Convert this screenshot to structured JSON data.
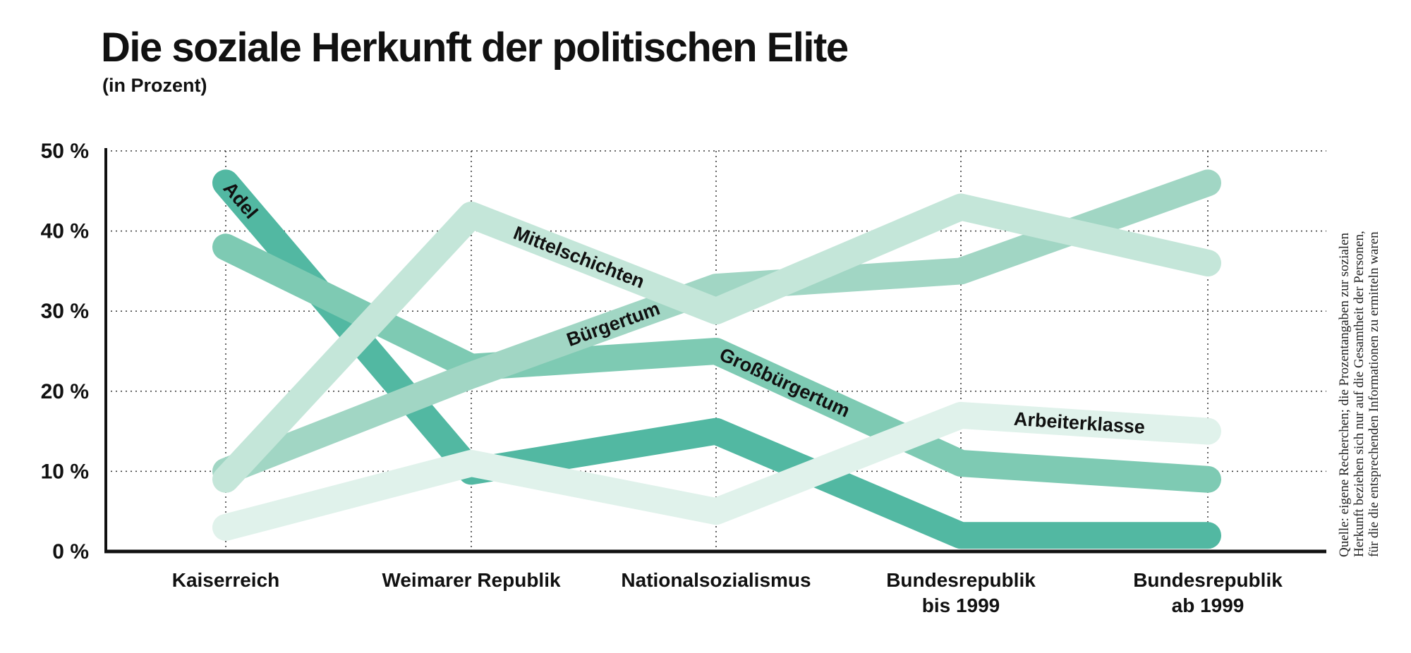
{
  "header": {
    "title": "Die soziale Herkunft der politischen Elite",
    "subtitle": "(in Prozent)"
  },
  "source": {
    "lines": [
      "Quelle: eigene Recherchen; die Prozentangaben zur sozialen",
      "Herkunft beziehen sich nur auf die Gesamtheit der Personen,",
      "für die die entsprechenden Informationen zu ermitteln waren"
    ]
  },
  "chart_data": {
    "type": "line",
    "title": "Die soziale Herkunft der politischen Elite",
    "subtitle": "(in Prozent)",
    "categories": [
      [
        "Kaiserreich"
      ],
      [
        "Weimarer Republik"
      ],
      [
        "Nationalsozialismus"
      ],
      [
        "Bundesrepublik",
        "bis 1999"
      ],
      [
        "Bundesrepublik",
        "ab 1999"
      ]
    ],
    "y_ticks": [
      "0 %",
      "10 %",
      "20 %",
      "30 %",
      "40 %",
      "50 %"
    ],
    "ylim": [
      0,
      50
    ],
    "grid": true,
    "series": [
      {
        "name": "Adel",
        "values": [
          46,
          10,
          15,
          2,
          2
        ],
        "color": "#52b8a2"
      },
      {
        "name": "Großbürgertum",
        "values": [
          38,
          23,
          25,
          11,
          9
        ],
        "color": "#7ecab3"
      },
      {
        "name": "Bürgertum",
        "values": [
          10,
          22,
          33,
          35,
          46
        ],
        "color": "#a1d6c4"
      },
      {
        "name": "Mittelschichten",
        "values": [
          9,
          42,
          30,
          43,
          36
        ],
        "color": "#c4e6d9"
      },
      {
        "name": "Arbeiterklasse",
        "values": [
          3,
          11,
          5,
          17,
          15
        ],
        "color": "#e0f2eb"
      }
    ]
  }
}
